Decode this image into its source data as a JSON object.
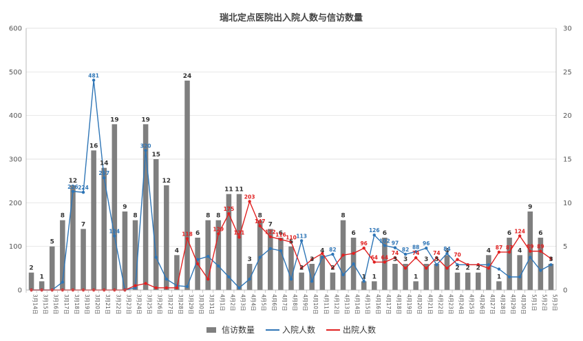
{
  "chart_data": {
    "type": "bar",
    "title": "瑞北定点医院出入院人数与信访数量",
    "categories": [
      "3月14日",
      "3月15日",
      "3月16日",
      "3月17日",
      "3月18日",
      "3月19日",
      "3月20日",
      "3月21日",
      "3月22日",
      "3月23日",
      "3月24日",
      "3月25日",
      "3月26日",
      "3月27日",
      "3月28日",
      "3月29日",
      "3月30日",
      "3月31日",
      "4月1日",
      "4月2日",
      "4月3日",
      "4月4日",
      "4月5日",
      "4月6日",
      "4月7日",
      "4月8日",
      "4月9日",
      "4月10日",
      "4月11日",
      "4月12日",
      "4月13日",
      "4月14日",
      "4月15日",
      "4月16日",
      "4月17日",
      "4月18日",
      "4月19日",
      "4月20日",
      "4月21日",
      "4月22日",
      "4月23日",
      "4月24日",
      "4月25日",
      "4月26日",
      "4月27日",
      "4月28日",
      "4月29日",
      "4月30日",
      "5月1日",
      "5月2日",
      "5月3日"
    ],
    "left_axis": {
      "ylim": [
        0,
        600
      ],
      "ticks": [
        "0",
        "100",
        "200",
        "300",
        "400",
        "500",
        "600"
      ]
    },
    "right_axis": {
      "ylim": [
        0,
        30
      ],
      "ticks": [
        "0",
        "5",
        "10",
        "15",
        "20",
        "25",
        "30"
      ]
    },
    "grid": true,
    "legend_position": "bottom",
    "series": [
      {
        "name": "信访数量",
        "type": "bar",
        "axis": "right",
        "color": "#7f7f7f",
        "values": [
          2,
          1,
          5,
          8,
          12,
          7,
          16,
          14,
          19,
          9,
          8,
          19,
          15,
          12,
          4,
          24,
          6,
          8,
          8,
          11,
          11,
          3,
          8,
          7,
          6,
          5,
          2,
          3,
          4,
          2,
          8,
          6,
          1,
          1,
          6,
          3,
          3,
          1,
          3,
          3,
          4,
          2,
          2,
          2,
          4,
          1,
          6,
          4,
          9,
          6,
          3
        ],
        "labels": [
          "2",
          "1",
          "5",
          "8",
          "12",
          "7",
          "16",
          "14",
          "19",
          "9",
          "8",
          "19",
          "15",
          "12",
          "4",
          "24",
          "6",
          "8",
          "8",
          "11",
          "11",
          "3",
          "8",
          "7",
          "6",
          "5",
          "2",
          "3",
          "4",
          "2",
          "8",
          "6",
          "1",
          "1",
          "6",
          "3",
          "3",
          "1",
          "3",
          "3",
          "4",
          "2",
          "2",
          "2",
          "4",
          "1",
          "6",
          "4",
          "9",
          "6",
          "3"
        ]
      },
      {
        "name": "入院人数",
        "type": "line",
        "axis": "left",
        "color": "#2e75b6",
        "values": [
          0,
          0,
          0,
          18,
          226,
          224,
          481,
          257,
          124,
          0,
          5,
          320,
          75,
          25,
          10,
          8,
          70,
          77,
          55,
          30,
          5,
          25,
          75,
          95,
          90,
          25,
          113,
          20,
          75,
          82,
          35,
          60,
          20,
          126,
          102,
          97,
          82,
          88,
          96,
          58,
          84,
          58,
          58,
          58,
          58,
          48,
          30,
          30,
          75,
          45,
          58
        ],
        "labels": [
          "",
          "",
          "",
          "",
          "226",
          "224",
          "481",
          "257",
          "124",
          "",
          "",
          "320",
          "",
          "",
          "",
          "",
          "",
          "",
          "",
          "",
          "",
          "",
          "",
          "",
          "",
          "",
          "113",
          "",
          "",
          "82",
          "",
          "",
          "",
          "126",
          "102",
          "97",
          "82",
          "88",
          "96",
          "",
          "84",
          "",
          "",
          "",
          "",
          "",
          "",
          "",
          "",
          "",
          ""
        ]
      },
      {
        "name": "出院人数",
        "type": "line",
        "axis": "left",
        "color": "#e02020",
        "values": [
          0,
          0,
          0,
          0,
          0,
          0,
          0,
          0,
          0,
          0,
          10,
          15,
          5,
          5,
          5,
          118,
          60,
          25,
          129,
          175,
          121,
          203,
          147,
          122,
          116,
          110,
          50,
          70,
          84,
          50,
          80,
          84,
          96,
          64,
          64,
          74,
          50,
          74,
          50,
          74,
          50,
          70,
          58,
          58,
          50,
          87,
          87,
          124,
          89,
          89,
          72
        ],
        "labels": [
          "",
          "",
          "",
          "",
          "",
          "",
          "",
          "",
          "",
          "",
          "",
          "",
          "",
          "",
          "",
          "118",
          "",
          "",
          "129",
          "175",
          "121",
          "203",
          "147",
          "122",
          "116",
          "110",
          "",
          "",
          "",
          "",
          "",
          "",
          "96",
          "64",
          "64",
          "74",
          "",
          "74",
          "",
          "74",
          "",
          "70",
          "",
          "",
          "",
          "87",
          "87",
          "124",
          "89",
          "89",
          ""
        ]
      }
    ]
  },
  "legend": {
    "items": [
      {
        "label": "信访数量",
        "color": "#7f7f7f",
        "kind": "bar"
      },
      {
        "label": "入院人数",
        "color": "#2e75b6",
        "kind": "line"
      },
      {
        "label": "出院人数",
        "color": "#e02020",
        "kind": "line"
      }
    ]
  }
}
